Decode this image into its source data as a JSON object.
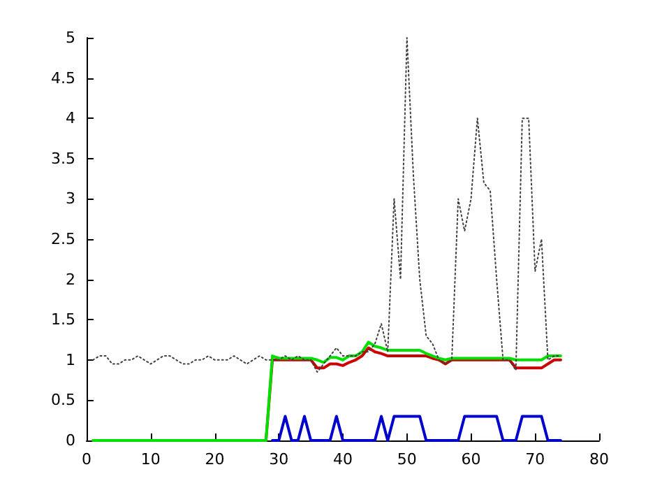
{
  "chart_data": {
    "type": "line",
    "x": [
      1,
      2,
      3,
      4,
      5,
      6,
      7,
      8,
      9,
      10,
      11,
      12,
      13,
      14,
      15,
      16,
      17,
      18,
      19,
      20,
      21,
      22,
      23,
      24,
      25,
      26,
      27,
      28,
      29,
      30,
      31,
      32,
      33,
      34,
      35,
      36,
      37,
      38,
      39,
      40,
      41,
      42,
      43,
      44,
      45,
      46,
      47,
      48,
      49,
      50,
      51,
      52,
      53,
      54,
      55,
      56,
      57,
      58,
      59,
      60,
      61,
      62,
      63,
      64,
      65,
      66,
      67,
      68,
      69,
      70,
      71,
      72,
      73,
      74
    ],
    "series": [
      {
        "color": "#404040",
        "line_style": "dotted",
        "values": [
          1.0,
          1.05,
          1.05,
          0.95,
          0.95,
          1.0,
          1.0,
          1.05,
          1.0,
          0.95,
          1.0,
          1.05,
          1.05,
          1.0,
          0.95,
          0.95,
          1.0,
          1.0,
          1.05,
          1.0,
          1.0,
          1.0,
          1.05,
          1.0,
          0.95,
          1.0,
          1.05,
          1.0,
          1.0,
          1.0,
          1.05,
          1.0,
          1.05,
          1.0,
          1.0,
          0.85,
          0.95,
          1.05,
          1.15,
          1.05,
          1.05,
          1.05,
          1.1,
          1.1,
          1.2,
          1.45,
          1.1,
          3.0,
          2.0,
          5.0,
          3.3,
          2.0,
          1.3,
          1.2,
          1.0,
          0.95,
          1.0,
          3.0,
          2.6,
          3.0,
          4.0,
          3.2,
          3.1,
          2.0,
          1.0,
          1.0,
          0.87,
          4.0,
          4.0,
          2.1,
          2.5,
          1.0,
          1.05,
          1.05
        ]
      },
      {
        "color": "#cc0000",
        "line_style": "solid",
        "values": [
          null,
          null,
          null,
          null,
          null,
          null,
          null,
          null,
          null,
          null,
          null,
          null,
          null,
          null,
          null,
          null,
          null,
          null,
          null,
          null,
          null,
          null,
          null,
          null,
          null,
          null,
          null,
          0,
          1.0,
          1.0,
          1.0,
          1.0,
          1.0,
          1.0,
          1.0,
          0.9,
          0.9,
          0.95,
          0.95,
          0.93,
          0.97,
          1.0,
          1.05,
          1.15,
          1.1,
          1.08,
          1.05,
          1.05,
          1.05,
          1.05,
          1.05,
          1.05,
          1.05,
          1.02,
          1.0,
          0.95,
          1.0,
          1.0,
          1.0,
          1.0,
          1.0,
          1.0,
          1.0,
          1.0,
          1.0,
          1.0,
          0.9,
          0.9,
          0.9,
          0.9,
          0.9,
          0.95,
          1.0,
          1.0
        ]
      },
      {
        "color": "#00e000",
        "line_style": "solid",
        "values": [
          0,
          0,
          0,
          0,
          0,
          0,
          0,
          0,
          0,
          0,
          0,
          0,
          0,
          0,
          0,
          0,
          0,
          0,
          0,
          0,
          0,
          0,
          0,
          0,
          0,
          0,
          0,
          0,
          1.05,
          1.02,
          1.02,
          1.02,
          1.02,
          1.02,
          1.02,
          1.0,
          0.97,
          1.03,
          1.03,
          1.0,
          1.05,
          1.05,
          1.1,
          1.22,
          1.17,
          1.15,
          1.12,
          1.12,
          1.12,
          1.12,
          1.12,
          1.12,
          1.08,
          1.05,
          1.02,
          1.0,
          1.02,
          1.02,
          1.02,
          1.02,
          1.02,
          1.02,
          1.02,
          1.02,
          1.02,
          1.02,
          1.0,
          1.0,
          1.0,
          1.0,
          1.0,
          1.05,
          1.05,
          1.05
        ]
      },
      {
        "color": "#0000cc",
        "line_style": "solid",
        "values": [
          null,
          null,
          null,
          null,
          null,
          null,
          null,
          null,
          null,
          null,
          null,
          null,
          null,
          null,
          null,
          null,
          null,
          null,
          null,
          null,
          null,
          null,
          null,
          null,
          null,
          null,
          null,
          null,
          0,
          0,
          0.3,
          0,
          0,
          0.3,
          0,
          0,
          0,
          0,
          0.3,
          0,
          0,
          0,
          0,
          0,
          0,
          0.3,
          0,
          0.3,
          0.3,
          0.3,
          0.3,
          0.3,
          0,
          0,
          0,
          0,
          0,
          0,
          0.3,
          0.3,
          0.3,
          0.3,
          0.3,
          0.3,
          0,
          0,
          0,
          0.3,
          0.3,
          0.3,
          0.3,
          0,
          0,
          0
        ]
      }
    ],
    "xlim": [
      0,
      80
    ],
    "xticks": [
      0,
      10,
      20,
      30,
      40,
      50,
      60,
      70,
      80
    ],
    "ylim": [
      0,
      5
    ],
    "yticks": [
      0,
      0.5,
      1,
      1.5,
      2,
      2.5,
      3,
      3.5,
      4,
      4.5,
      5
    ],
    "grid": false,
    "marker": "none"
  }
}
